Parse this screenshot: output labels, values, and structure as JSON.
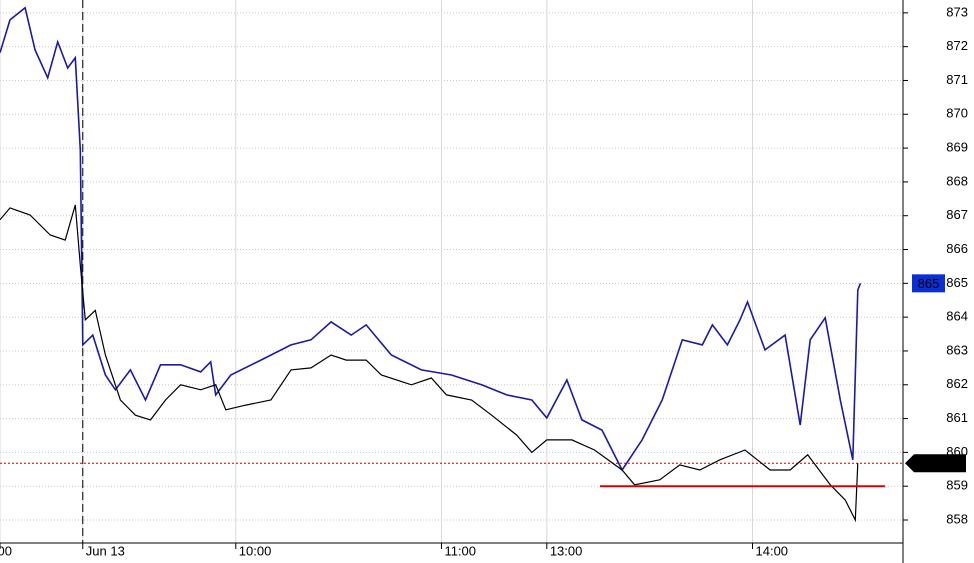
{
  "chart_data": {
    "type": "line",
    "xlim": [
      0,
      180
    ],
    "ylim": [
      857.32,
      873.38
    ],
    "yticks": [
      858,
      859,
      860,
      861,
      862,
      863,
      864,
      865,
      866,
      867,
      868,
      869,
      870,
      871,
      872,
      873
    ],
    "xticks": [
      {
        "value": 0,
        "label": "00"
      },
      {
        "value": 16.5,
        "label": "Jun 13"
      },
      {
        "value": 47,
        "label": "10:00"
      },
      {
        "value": 88,
        "label": "11:00"
      },
      {
        "value": 109,
        "label": "13:00"
      },
      {
        "value": 150,
        "label": "14:00"
      }
    ],
    "grid": true,
    "session_break": 16.5,
    "series": [
      {
        "color": "#1a1aa6",
        "tag": "865",
        "tag_color": "#0a2fd6",
        "x": [
          0,
          2,
          5,
          7,
          9.5,
          11.5,
          13.5,
          15,
          16,
          16.5,
          18.5,
          21,
          23,
          26,
          29,
          32,
          36,
          40,
          42,
          43,
          46,
          52,
          58,
          62,
          66,
          70,
          73,
          78,
          84,
          90,
          96,
          101,
          106,
          109,
          113,
          116,
          120,
          124,
          128,
          132,
          136,
          140,
          142,
          145,
          147.5,
          149,
          152.5,
          156.5,
          159.5,
          161.5,
          164.5,
          167.5,
          170,
          171,
          171.5
        ],
        "values": [
          871.82,
          872.79,
          873.15,
          871.9,
          871.08,
          872.14,
          871.37,
          871.67,
          868.95,
          863.18,
          863.47,
          862.29,
          861.85,
          862.44,
          861.55,
          862.59,
          862.59,
          862.38,
          862.68,
          861.7,
          862.29,
          862.73,
          863.18,
          863.33,
          863.86,
          863.47,
          863.77,
          862.88,
          862.44,
          862.29,
          862.0,
          861.7,
          861.55,
          861.02,
          862.14,
          860.96,
          860.66,
          859.48,
          860.37,
          861.55,
          863.33,
          863.18,
          863.77,
          863.18,
          863.92,
          864.45,
          863.03,
          863.47,
          860.81,
          863.33,
          863.98,
          861.55,
          859.78,
          864.8,
          865
        ]
      },
      {
        "color": "#000000",
        "tag": "859.68",
        "tag_color": "#000000",
        "x": [
          0,
          2,
          6,
          10,
          13,
          15,
          16,
          17,
          19,
          21,
          24,
          27,
          30,
          33,
          36,
          40,
          43,
          45,
          49,
          54,
          58,
          62,
          66,
          69,
          73,
          76,
          82,
          86,
          89,
          94,
          98,
          103,
          106,
          109,
          114,
          118.5,
          124,
          126.5,
          131.5,
          135.5,
          139.5,
          143.5,
          148.5,
          153.5,
          157.5,
          161,
          165.5,
          168.5,
          170.5,
          171
        ],
        "values": [
          866.88,
          867.23,
          867.02,
          866.43,
          866.28,
          867.32,
          865.54,
          863.92,
          864.2,
          862.88,
          861.55,
          861.1,
          860.96,
          861.55,
          862.0,
          861.85,
          862.0,
          861.26,
          861.4,
          861.55,
          862.44,
          862.5,
          862.88,
          862.73,
          862.73,
          862.29,
          862.0,
          862.2,
          861.7,
          861.55,
          861.1,
          860.51,
          860.0,
          860.37,
          860.37,
          860.07,
          859.48,
          859.04,
          859.19,
          859.63,
          859.48,
          859.78,
          860.07,
          859.48,
          859.48,
          859.93,
          859.04,
          858.59,
          858.0,
          859.68
        ]
      }
    ],
    "last_price_line": {
      "value": 859.68,
      "color": "#cc0000"
    },
    "hlines": [
      {
        "value": 859,
        "x": [
          119.6,
          176.4
        ],
        "color": "#dd0000"
      }
    ]
  }
}
